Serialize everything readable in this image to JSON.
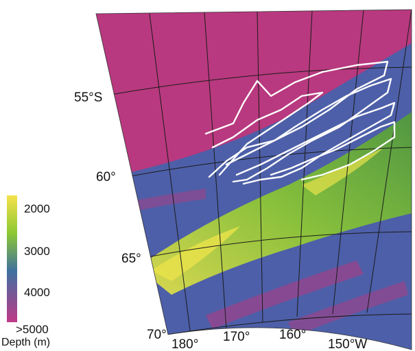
{
  "map": {
    "latitude_labels": [
      "55°S",
      "60°",
      "65°",
      "70°"
    ],
    "longitude_labels": [
      "180°",
      "170°",
      "160°",
      "150°W"
    ]
  },
  "legend": {
    "title": "Depth (m)",
    "ticks": [
      "2000",
      "3000",
      "4000",
      ">5000"
    ],
    "colors": [
      "#f6e24c",
      "#8cc832",
      "#3f6fa0",
      "#c03a88"
    ]
  },
  "palette": {
    "deep": "#b8397f",
    "abyssal": "#5a5aa0",
    "mid": "#3e6fa6",
    "ridge": "#7cbf3a",
    "shallow": "#e8e24a",
    "tracks": "#ffffff",
    "grid": "#1a1a1a"
  }
}
